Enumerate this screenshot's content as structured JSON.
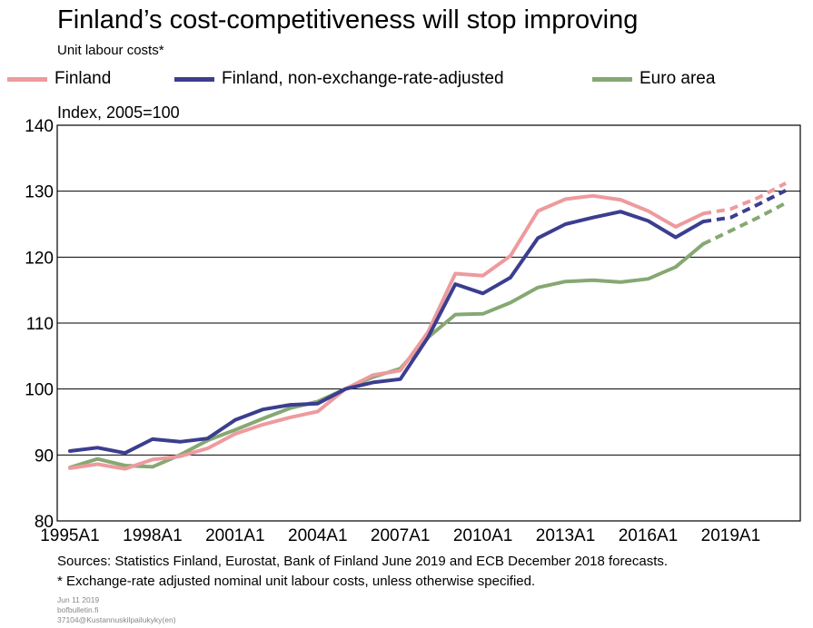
{
  "page": {
    "title": "Finland’s cost-competitiveness will stop improving",
    "subtitle": "Unit labour costs*",
    "sources": "Sources: Statistics Finland, Eurostat, Bank of Finland June 2019 and ECB December 2018 forecasts.",
    "footnote": "* Exchange-rate adjusted nominal unit labour costs, unless otherwise specified.",
    "meta": [
      "Jun 11 2019",
      "bofbulletin.fi",
      "37104@Kustannuskilpailukyky(en)"
    ]
  },
  "chart_data": {
    "type": "line",
    "title": "Finland’s cost-competitiveness will stop improving",
    "ylabel": "Index, 2005=100",
    "xlabel": "",
    "ylim": [
      80,
      140
    ],
    "yticks": [
      80,
      90,
      100,
      110,
      120,
      130,
      140
    ],
    "xticks": [
      "1995A1",
      "1998A1",
      "2001A1",
      "2004A1",
      "2007A1",
      "2010A1",
      "2013A1",
      "2016A1",
      "2019A1"
    ],
    "xlim": [
      1995,
      2021
    ],
    "grid": true,
    "legend": "top",
    "x": [
      1995,
      1996,
      1997,
      1998,
      1999,
      2000,
      2001,
      2002,
      2003,
      2004,
      2005,
      2006,
      2007,
      2008,
      2009,
      2010,
      2011,
      2012,
      2013,
      2014,
      2015,
      2016,
      2017,
      2018,
      2019,
      2020,
      2021
    ],
    "forecast_from": 2018,
    "series": [
      {
        "name": "Finland",
        "color": "#ee9a9e",
        "values": [
          88.0,
          88.6,
          87.9,
          89.3,
          89.8,
          91.0,
          93.2,
          94.6,
          95.7,
          96.6,
          100.0,
          102.1,
          102.8,
          108.6,
          117.5,
          117.2,
          120.2,
          127.0,
          128.8,
          129.3,
          128.7,
          127.0,
          124.6,
          126.6,
          127.3,
          129.0,
          131.2
        ]
      },
      {
        "name": "Finland, non-exchange-rate-adjusted",
        "color": "#3b3e8f",
        "values": [
          90.6,
          91.1,
          90.3,
          92.4,
          92.0,
          92.5,
          95.3,
          96.9,
          97.6,
          97.8,
          100.0,
          101.0,
          101.5,
          107.8,
          115.9,
          114.5,
          116.9,
          122.9,
          125.0,
          126.0,
          126.9,
          125.5,
          123.0,
          125.4,
          126.0,
          128.0,
          130.1
        ]
      },
      {
        "name": "Euro area",
        "color": "#86a873",
        "values": [
          88.1,
          89.4,
          88.4,
          88.2,
          90.0,
          92.2,
          93.8,
          95.5,
          97.1,
          98.1,
          100.0,
          101.8,
          103.1,
          107.8,
          111.3,
          111.4,
          113.1,
          115.4,
          116.3,
          116.5,
          116.2,
          116.7,
          118.5,
          122.0,
          124.0,
          126.0,
          128.2
        ]
      }
    ]
  }
}
